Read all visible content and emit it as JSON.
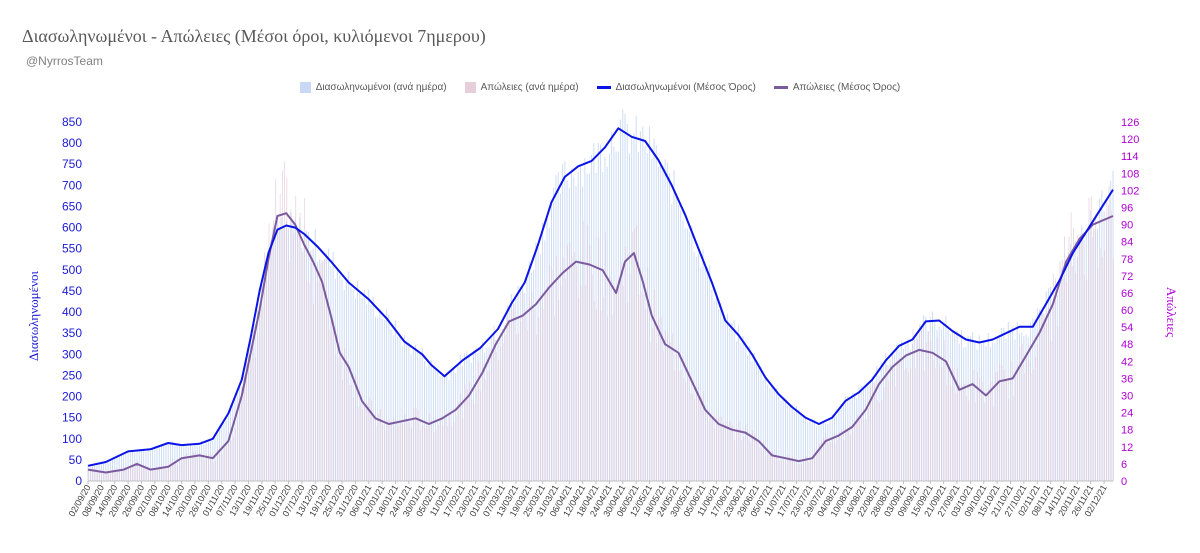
{
  "header": {
    "title": "Διασωληνωμένοι - Απώλειες (Μέσοι όροι, κυλιόμενοι 7ημερου)",
    "subtitle": "@NyrrosTeam"
  },
  "colors": {
    "intubated_bar": "#c9d9f5",
    "deaths_bar": "#e6cfdb",
    "intubated_line": "#0a14e6",
    "deaths_line": "#7b5a9e",
    "left_axis": "#1a1ad6",
    "right_axis": "#b000d6",
    "gridline": "#e4e4e4"
  },
  "chart_data": {
    "type": "bar",
    "xlabel": "",
    "ylabel": "Διασωληνωμένοι",
    "y2label": "Απώλειες",
    "ylim": [
      0,
      850
    ],
    "y2lim": [
      0,
      126
    ],
    "y_ticks": [
      0,
      50,
      100,
      150,
      200,
      250,
      300,
      350,
      400,
      450,
      500,
      550,
      600,
      650,
      700,
      750,
      800,
      850
    ],
    "y2_ticks": [
      0,
      6,
      12,
      18,
      24,
      30,
      36,
      42,
      48,
      54,
      60,
      66,
      72,
      78,
      84,
      90,
      96,
      102,
      108,
      114,
      120,
      126
    ],
    "x_range": [
      "02/09/20",
      "06/12/21"
    ],
    "categories": [
      "02/09/20",
      "08/09/20",
      "14/09/20",
      "20/09/20",
      "26/09/20",
      "02/10/20",
      "08/10/20",
      "14/10/20",
      "20/10/20",
      "26/10/20",
      "01/11/20",
      "07/11/20",
      "13/11/20",
      "19/11/20",
      "25/11/20",
      "01/12/20",
      "07/12/20",
      "13/12/20",
      "19/12/20",
      "25/12/20",
      "31/12/20",
      "06/01/21",
      "12/01/21",
      "18/01/21",
      "24/01/21",
      "30/01/21",
      "05/02/21",
      "11/02/21",
      "17/02/21",
      "23/02/21",
      "01/03/21",
      "07/03/21",
      "13/03/21",
      "19/03/21",
      "25/03/21",
      "31/03/21",
      "06/04/21",
      "12/04/21",
      "18/04/21",
      "24/04/21",
      "30/04/21",
      "06/05/21",
      "12/05/21",
      "18/05/21",
      "24/05/21",
      "30/05/21",
      "05/06/21",
      "11/06/21",
      "17/06/21",
      "23/06/21",
      "29/06/21",
      "05/07/21",
      "11/07/21",
      "17/07/21",
      "23/07/21",
      "29/07/21",
      "04/08/21",
      "10/08/21",
      "16/08/21",
      "22/08/21",
      "28/08/21",
      "03/09/21",
      "09/09/21",
      "15/09/21",
      "21/09/21",
      "27/09/21",
      "03/10/21",
      "09/10/21",
      "15/10/21",
      "21/10/21",
      "27/10/21",
      "02/11/21",
      "08/11/21",
      "14/11/21",
      "20/11/21",
      "26/11/21",
      "02/12/21"
    ],
    "series": [
      {
        "name": "Διασωληνωμένοι (Μέσος Όρος)",
        "axis": "left",
        "style": "line",
        "x": [
          "02/09/20",
          "10/09/20",
          "20/09/20",
          "30/09/20",
          "08/10/20",
          "14/10/20",
          "22/10/20",
          "28/10/20",
          "04/11/20",
          "10/11/20",
          "14/11/20",
          "18/11/20",
          "22/11/20",
          "26/11/20",
          "30/11/20",
          "04/12/20",
          "08/12/20",
          "14/12/20",
          "20/12/20",
          "28/12/20",
          "06/01/21",
          "14/01/21",
          "22/01/21",
          "30/01/21",
          "03/02/21",
          "09/02/21",
          "17/02/21",
          "25/02/21",
          "05/03/21",
          "11/03/21",
          "17/03/21",
          "23/03/21",
          "29/03/21",
          "04/04/21",
          "10/04/21",
          "16/04/21",
          "22/04/21",
          "28/04/21",
          "04/05/21",
          "10/05/21",
          "16/05/21",
          "22/05/21",
          "28/05/21",
          "03/06/21",
          "09/06/21",
          "15/06/21",
          "21/06/21",
          "27/06/21",
          "03/07/21",
          "09/07/21",
          "15/07/21",
          "21/07/21",
          "27/07/21",
          "02/08/21",
          "08/08/21",
          "14/08/21",
          "20/08/21",
          "26/08/21",
          "01/09/21",
          "07/09/21",
          "13/09/21",
          "19/09/21",
          "25/09/21",
          "01/10/21",
          "07/10/21",
          "13/10/21",
          "19/10/21",
          "25/10/21",
          "31/10/21",
          "06/11/21",
          "12/11/21",
          "18/11/21",
          "24/11/21",
          "30/11/21",
          "06/12/21"
        ],
        "values": [
          36,
          45,
          70,
          75,
          90,
          85,
          88,
          100,
          160,
          240,
          340,
          450,
          540,
          595,
          605,
          600,
          585,
          555,
          520,
          470,
          430,
          385,
          330,
          300,
          275,
          248,
          285,
          315,
          360,
          420,
          470,
          560,
          660,
          720,
          745,
          758,
          790,
          835,
          815,
          805,
          760,
          700,
          630,
          550,
          470,
          380,
          345,
          300,
          245,
          205,
          175,
          150,
          135,
          150,
          190,
          210,
          240,
          285,
          320,
          335,
          378,
          380,
          355,
          335,
          328,
          335,
          350,
          365,
          365,
          420,
          475,
          540,
          590,
          640,
          690
        ]
      },
      {
        "name": "Απώλειες (Μέσος Όρος)",
        "axis": "right",
        "style": "line",
        "x": [
          "02/09/20",
          "10/09/20",
          "18/09/20",
          "24/09/20",
          "30/09/20",
          "08/10/20",
          "14/10/20",
          "22/10/20",
          "28/10/20",
          "04/11/20",
          "10/11/20",
          "14/11/20",
          "18/11/20",
          "22/11/20",
          "26/11/20",
          "30/11/20",
          "04/12/20",
          "08/12/20",
          "12/12/20",
          "16/12/20",
          "20/12/20",
          "24/12/20",
          "28/12/20",
          "03/01/21",
          "09/01/21",
          "15/01/21",
          "21/01/21",
          "27/01/21",
          "02/02/21",
          "08/02/21",
          "14/02/21",
          "20/02/21",
          "26/02/21",
          "04/03/21",
          "10/03/21",
          "16/03/21",
          "22/03/21",
          "28/03/21",
          "03/04/21",
          "09/04/21",
          "15/04/21",
          "21/04/21",
          "27/04/21",
          "01/05/21",
          "05/05/21",
          "09/05/21",
          "13/05/21",
          "19/05/21",
          "25/05/21",
          "31/05/21",
          "06/06/21",
          "12/06/21",
          "18/06/21",
          "24/06/21",
          "30/06/21",
          "06/07/21",
          "12/07/21",
          "18/07/21",
          "24/07/21",
          "30/07/21",
          "05/08/21",
          "11/08/21",
          "17/08/21",
          "23/08/21",
          "29/08/21",
          "04/09/21",
          "10/09/21",
          "16/09/21",
          "22/09/21",
          "28/09/21",
          "04/10/21",
          "10/10/21",
          "16/10/21",
          "22/10/21",
          "28/10/21",
          "03/11/21",
          "09/11/21",
          "15/11/21",
          "21/11/21",
          "27/11/21",
          "06/12/21"
        ],
        "values": [
          4,
          3,
          4,
          6,
          4,
          5,
          8,
          9,
          8,
          14,
          30,
          45,
          60,
          78,
          93,
          94,
          90,
          83,
          77,
          70,
          58,
          45,
          40,
          28,
          22,
          20,
          21,
          22,
          20,
          22,
          25,
          30,
          38,
          48,
          56,
          58,
          62,
          68,
          73,
          77,
          76,
          74,
          66,
          77,
          80,
          70,
          58,
          48,
          45,
          35,
          25,
          20,
          18,
          17,
          14,
          9,
          8,
          7,
          8,
          14,
          16,
          19,
          25,
          34,
          40,
          44,
          46,
          45,
          42,
          32,
          34,
          30,
          35,
          36,
          44,
          52,
          62,
          77,
          85,
          90,
          93
        ]
      },
      {
        "name": "Διασωληνωμένοι (ανά ημέρα)",
        "axis": "left",
        "style": "bar",
        "note": "daily values, visually scattered around the 7-day average line"
      },
      {
        "name": "Απώλειες (ανά ημέρα)",
        "axis": "right",
        "style": "bar",
        "note": "daily values, visually scattered around the 7-day average line"
      }
    ],
    "legend_position": "top-center",
    "grid": false
  }
}
